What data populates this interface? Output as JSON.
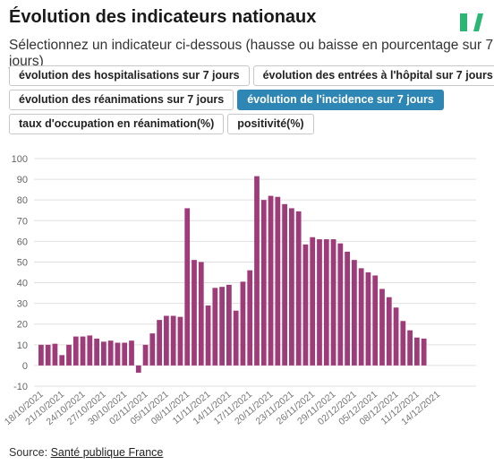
{
  "header": {
    "title": "Évolution des indicateurs nationaux",
    "subtitle": "Sélectionnez un indicateur ci-dessous (hausse ou baisse en pourcentage sur 7 jours)"
  },
  "tabs": [
    {
      "label": "évolution des hospitalisations sur 7 jours",
      "active": false
    },
    {
      "label": "évolution des entrées à l'hôpital sur 7 jours",
      "active": false
    },
    {
      "label": "évolution des réanimations sur 7 jours",
      "active": false
    },
    {
      "label": "évolution de l'incidence sur 7 jours",
      "active": true
    },
    {
      "label": "taux d'occupation en réanimation(%)",
      "active": false
    },
    {
      "label": "positivité(%)",
      "active": false
    }
  ],
  "footer": {
    "source_prefix": "Source: ",
    "source_link": "Santé publique France"
  },
  "colors": {
    "bar": "#9e3c79",
    "active_tab": "#2e86b5",
    "grid": "#e0e0e0",
    "logo": "#2bb673"
  },
  "chart_data": {
    "type": "bar",
    "ylim": [
      -10,
      100
    ],
    "yticks": [
      -10,
      0,
      10,
      20,
      30,
      40,
      50,
      60,
      70,
      80,
      90,
      100
    ],
    "grid": true,
    "x_start": "2021-10-18",
    "tick_labels": [
      "18/10/2021",
      "21/10/2021",
      "24/10/2021",
      "27/10/2021",
      "30/10/2021",
      "02/11/2021",
      "05/11/2021",
      "08/11/2021",
      "11/11/2021",
      "14/11/2021",
      "17/11/2021",
      "20/11/2021",
      "23/11/2021",
      "26/11/2021",
      "29/11/2021",
      "02/12/2021",
      "05/12/2021",
      "08/12/2021",
      "11/12/2021",
      "14/12/2021"
    ],
    "values": [
      10,
      10,
      10.5,
      5,
      10,
      14,
      14,
      14.5,
      13,
      11.5,
      12,
      11,
      11,
      12,
      -3.5,
      10,
      15.5,
      22,
      24,
      24,
      23.5,
      76,
      51,
      50,
      29,
      37.5,
      38,
      39,
      26.5,
      40.5,
      46,
      91.5,
      80,
      82,
      81.5,
      78,
      76,
      74.5,
      58.5,
      62,
      61,
      61,
      61,
      59,
      55,
      51,
      47,
      45,
      43.5,
      37,
      33,
      28,
      21.5,
      17,
      13.5,
      13
    ]
  }
}
